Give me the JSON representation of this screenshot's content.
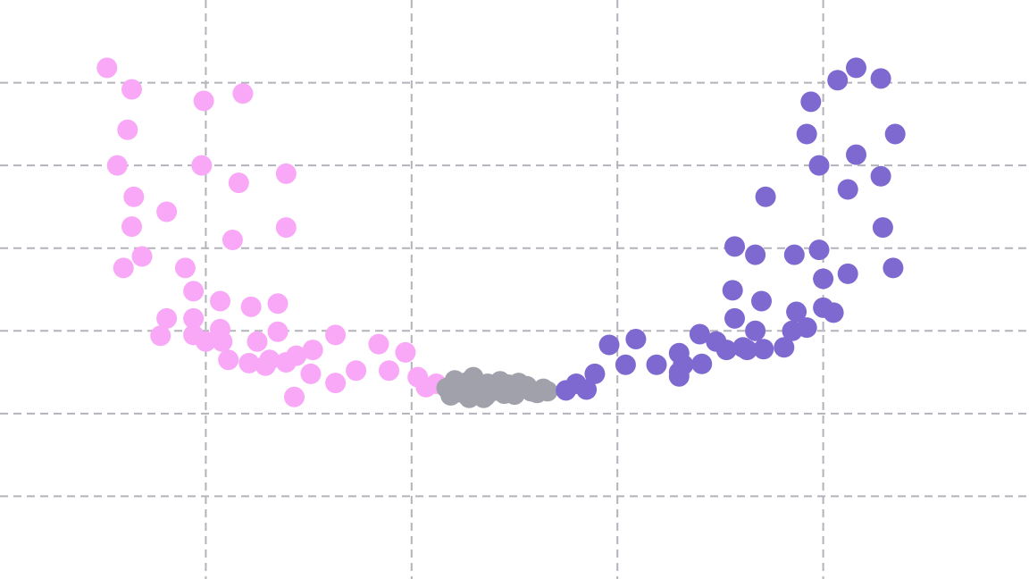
{
  "chart_data": {
    "type": "scatter",
    "title": "",
    "xlabel": "",
    "ylabel": "",
    "grid": true,
    "xlim": [
      0,
      5
    ],
    "ylim": [
      0,
      7
    ],
    "xgrid": [
      1,
      2,
      3,
      4
    ],
    "ygrid": [
      1,
      2,
      3,
      4,
      5,
      6
    ],
    "series": [
      {
        "color": "#f9a8f7",
        "points": [
          [
            0.52,
            6.18
          ],
          [
            0.64,
            5.92
          ],
          [
            0.62,
            5.43
          ],
          [
            0.57,
            5.0
          ],
          [
            0.65,
            4.62
          ],
          [
            0.64,
            4.26
          ],
          [
            0.69,
            3.9
          ],
          [
            0.6,
            3.76
          ],
          [
            0.81,
            4.44
          ],
          [
            0.9,
            3.76
          ],
          [
            0.94,
            3.48
          ],
          [
            0.81,
            3.15
          ],
          [
            0.78,
            2.94
          ],
          [
            0.94,
            3.15
          ],
          [
            0.94,
            2.95
          ],
          [
            1.0,
            2.87
          ],
          [
            0.99,
            5.78
          ],
          [
            0.98,
            5.0
          ],
          [
            1.18,
            5.87
          ],
          [
            1.16,
            4.79
          ],
          [
            1.13,
            4.1
          ],
          [
            1.07,
            3.36
          ],
          [
            1.07,
            3.02
          ],
          [
            1.08,
            2.87
          ],
          [
            1.11,
            2.65
          ],
          [
            1.22,
            3.29
          ],
          [
            1.25,
            2.87
          ],
          [
            1.21,
            2.61
          ],
          [
            1.29,
            2.58
          ],
          [
            1.31,
            2.65
          ],
          [
            1.39,
            4.9
          ],
          [
            1.39,
            4.25
          ],
          [
            1.35,
            3.33
          ],
          [
            1.35,
            2.99
          ],
          [
            1.39,
            2.62
          ],
          [
            1.44,
            2.7
          ],
          [
            1.52,
            2.77
          ],
          [
            1.51,
            2.48
          ],
          [
            1.43,
            2.2
          ],
          [
            1.63,
            2.95
          ],
          [
            1.63,
            2.37
          ],
          [
            1.73,
            2.52
          ],
          [
            1.84,
            2.84
          ],
          [
            1.89,
            2.52
          ],
          [
            1.97,
            2.74
          ],
          [
            2.03,
            2.44
          ],
          [
            2.07,
            2.32
          ],
          [
            2.12,
            2.36
          ]
        ]
      },
      {
        "color": "#a1a1ac",
        "points": [
          [
            2.17,
            2.31
          ],
          [
            2.19,
            2.22
          ],
          [
            2.21,
            2.4
          ],
          [
            2.23,
            2.29
          ],
          [
            2.25,
            2.25
          ],
          [
            2.27,
            2.38
          ],
          [
            2.29,
            2.33
          ],
          [
            2.3,
            2.44
          ],
          [
            2.32,
            2.23
          ],
          [
            2.34,
            2.3
          ],
          [
            2.35,
            2.19
          ],
          [
            2.37,
            2.36
          ],
          [
            2.39,
            2.27
          ],
          [
            2.41,
            2.32
          ],
          [
            2.43,
            2.39
          ],
          [
            2.45,
            2.24
          ],
          [
            2.47,
            2.35
          ],
          [
            2.49,
            2.29
          ],
          [
            2.5,
            2.23
          ],
          [
            2.53,
            2.31
          ],
          [
            2.56,
            2.33
          ],
          [
            2.58,
            2.27
          ],
          [
            2.61,
            2.25
          ],
          [
            2.64,
            2.3
          ],
          [
            2.66,
            2.27
          ],
          [
            2.22,
            2.36
          ],
          [
            2.28,
            2.19
          ],
          [
            2.36,
            2.21
          ],
          [
            2.44,
            2.28
          ],
          [
            2.52,
            2.37
          ]
        ]
      },
      {
        "color": "#7e69d0",
        "points": [
          [
            2.75,
            2.28
          ],
          [
            2.8,
            2.36
          ],
          [
            2.85,
            2.29
          ],
          [
            2.89,
            2.48
          ],
          [
            2.96,
            2.83
          ],
          [
            3.04,
            2.59
          ],
          [
            3.09,
            2.9
          ],
          [
            3.19,
            2.59
          ],
          [
            3.3,
            2.73
          ],
          [
            3.3,
            2.5
          ],
          [
            3.32,
            2.59
          ],
          [
            3.41,
            2.6
          ],
          [
            3.4,
            2.96
          ],
          [
            3.48,
            2.87
          ],
          [
            3.53,
            2.77
          ],
          [
            3.61,
            2.8
          ],
          [
            3.57,
            3.15
          ],
          [
            3.56,
            3.49
          ],
          [
            3.67,
            3.0
          ],
          [
            3.63,
            2.77
          ],
          [
            3.67,
            3.92
          ],
          [
            3.7,
            3.36
          ],
          [
            3.72,
            4.62
          ],
          [
            3.71,
            2.78
          ],
          [
            3.81,
            2.8
          ],
          [
            3.85,
            3.0
          ],
          [
            3.86,
            3.92
          ],
          [
            3.87,
            3.23
          ],
          [
            3.92,
            3.04
          ],
          [
            3.92,
            5.38
          ],
          [
            3.94,
            5.77
          ],
          [
            3.98,
            3.98
          ],
          [
            4.0,
            3.28
          ],
          [
            4.0,
            3.63
          ],
          [
            4.05,
            3.22
          ],
          [
            4.07,
            6.03
          ],
          [
            4.12,
            4.71
          ],
          [
            4.12,
            3.69
          ],
          [
            4.16,
            5.13
          ],
          [
            4.16,
            6.18
          ],
          [
            4.28,
            6.05
          ],
          [
            4.28,
            4.87
          ],
          [
            4.29,
            4.25
          ],
          [
            4.34,
            3.76
          ],
          [
            4.35,
            5.38
          ],
          [
            3.98,
            5.0
          ],
          [
            3.57,
            4.02
          ],
          [
            3.3,
            2.45
          ]
        ]
      }
    ]
  }
}
